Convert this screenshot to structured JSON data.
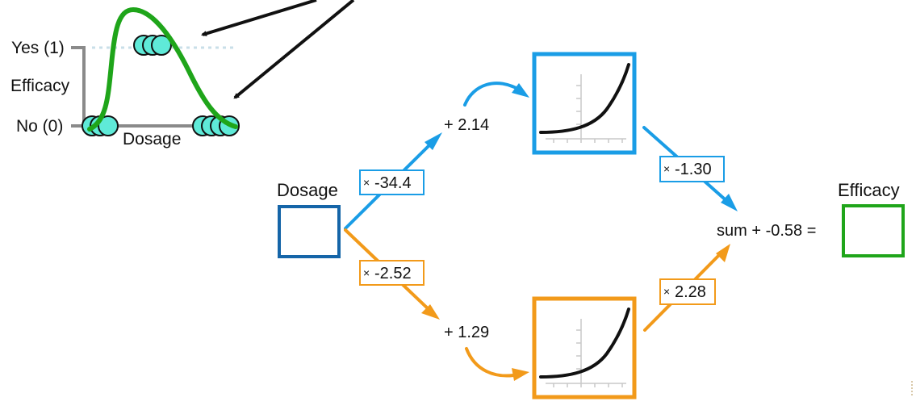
{
  "colors": {
    "blue": "#1a9de6",
    "orange": "#f29a1a",
    "green": "#1fa51a",
    "input_box": "#1565a8",
    "dot_fill": "#5fead8",
    "axis_gray": "#8a8a8a",
    "dotted_line": "#c9dfe8",
    "arrow_black": "#111111"
  },
  "graph": {
    "y_top_label": "Yes (1)",
    "y_bottom_label": "No (0)",
    "y_title": "Efficacy",
    "x_title": "Dosage"
  },
  "input": {
    "label": "Dosage"
  },
  "output": {
    "label": "Efficacy",
    "sum_text": "sum + -0.58 ="
  },
  "top_path": {
    "weight_in": "-34.4",
    "bias": "+ 2.14",
    "weight_out": "-1.30",
    "activation_icon": "softplus-curve-icon"
  },
  "bottom_path": {
    "weight_in": "-2.52",
    "bias": "+ 1.29",
    "weight_out": "2.28",
    "activation_icon": "softplus-curve-icon"
  },
  "multiply_symbol": "×"
}
